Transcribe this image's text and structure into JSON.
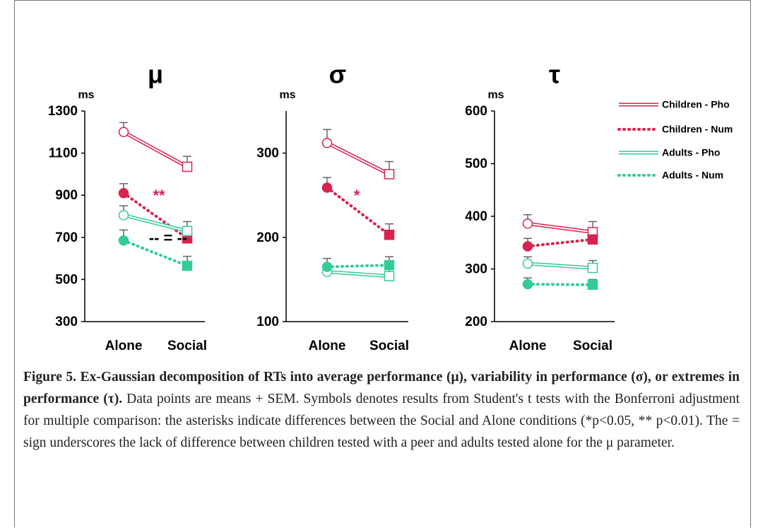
{
  "legend": [
    {
      "name": "Children - Pho",
      "color": "#d9234f",
      "style": "double"
    },
    {
      "name": "Children - Num",
      "color": "#d9234f",
      "style": "dotted"
    },
    {
      "name": "Adults - Pho",
      "color": "#33cc99",
      "style": "double"
    },
    {
      "name": "Adults - Num",
      "color": "#33cc99",
      "style": "dotted"
    }
  ],
  "chart_data": [
    {
      "type": "line",
      "title": "μ",
      "y_label": "ms",
      "categories": [
        "Alone",
        "Social"
      ],
      "ylim": [
        300,
        1300
      ],
      "yticks": [
        300,
        500,
        700,
        900,
        1100,
        1300
      ],
      "series": [
        {
          "values": [
            1200,
            1035
          ],
          "errors": [
            45,
            50
          ]
        },
        {
          "values": [
            910,
            695
          ],
          "errors": [
            45,
            45
          ]
        },
        {
          "values": [
            805,
            730
          ],
          "errors": [
            45,
            45
          ]
        },
        {
          "values": [
            685,
            565
          ],
          "errors": [
            50,
            45
          ]
        }
      ],
      "annotations": [
        {
          "text": "**",
          "color": "#d9234f"
        },
        {
          "text": "-- = --",
          "color": "#000000"
        }
      ]
    },
    {
      "type": "line",
      "title": "σ",
      "y_label": "ms",
      "categories": [
        "Alone",
        "Social"
      ],
      "ylim": [
        100,
        350
      ],
      "yticks": [
        100,
        200,
        300
      ],
      "series": [
        {
          "values": [
            312,
            275
          ],
          "errors": [
            16,
            15
          ]
        },
        {
          "values": [
            259,
            203
          ],
          "errors": [
            12,
            13
          ]
        },
        {
          "values": [
            159,
            154
          ],
          "errors": [
            8,
            8
          ]
        },
        {
          "values": [
            165,
            167
          ],
          "errors": [
            10,
            10
          ]
        }
      ],
      "annotations": [
        {
          "text": "*",
          "color": "#d9234f"
        }
      ]
    },
    {
      "type": "line",
      "title": "τ",
      "y_label": "ms",
      "categories": [
        "Alone",
        "Social"
      ],
      "ylim": [
        200,
        600
      ],
      "yticks": [
        200,
        300,
        400,
        500,
        600
      ],
      "series": [
        {
          "values": [
            386,
            370
          ],
          "errors": [
            17,
            20
          ]
        },
        {
          "values": [
            343,
            356
          ],
          "errors": [
            15,
            15
          ]
        },
        {
          "values": [
            310,
            302
          ],
          "errors": [
            13,
            14
          ]
        },
        {
          "values": [
            271,
            270
          ],
          "errors": [
            12,
            10
          ]
        }
      ],
      "annotations": []
    }
  ],
  "caption": {
    "bold": "Figure 5. Ex-Gaussian decomposition of RTs into average performance (μ), variability in performance (σ), or extremes in performance (τ).",
    "text": " Data points are means + SEM. Symbols denotes results from Student's t tests with the Bonferroni adjustment for multiple comparison: the asterisks indicate differences between the Social and Alone conditions (*p<0.05, ** p<0.01). The = sign underscores the lack of difference between children tested with a peer and adults tested alone for the μ parameter."
  }
}
